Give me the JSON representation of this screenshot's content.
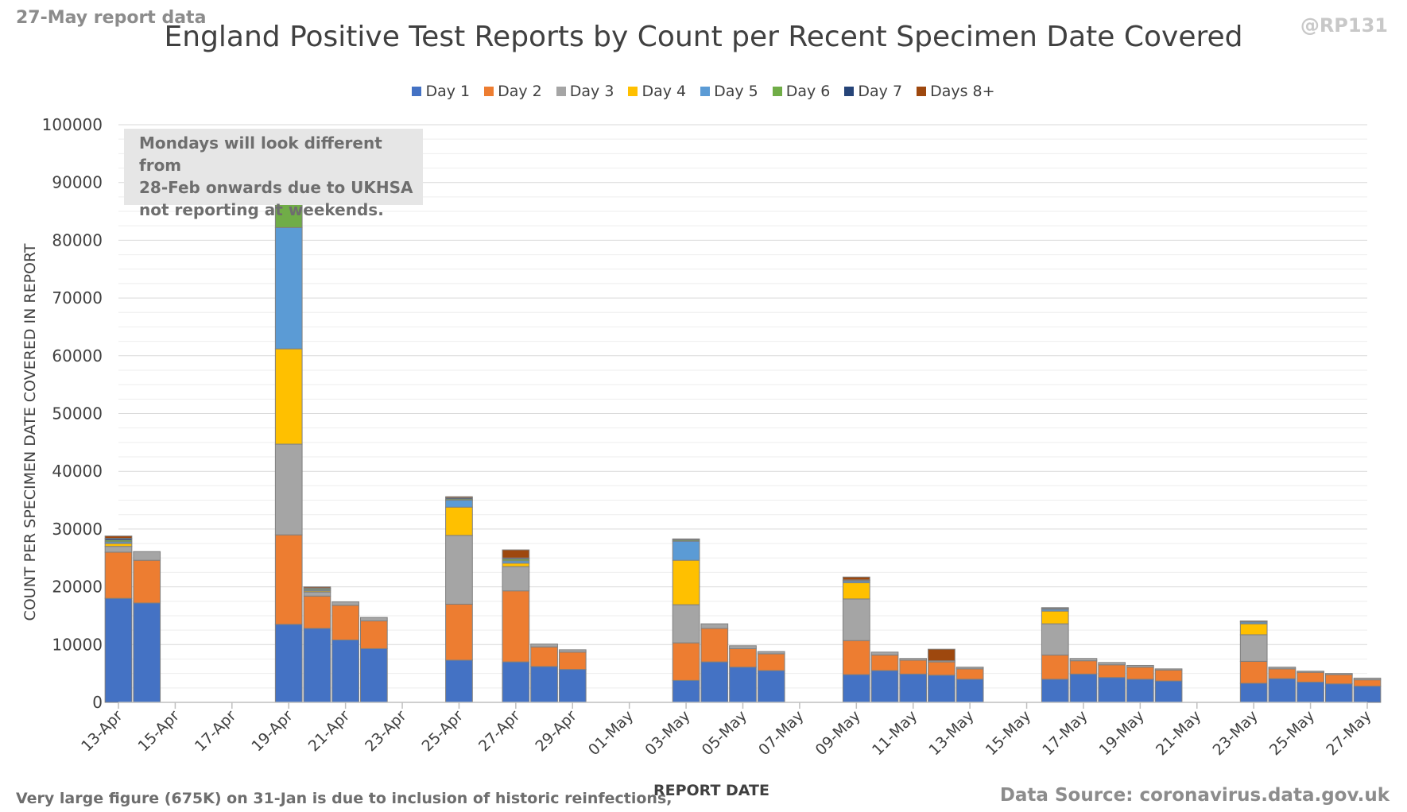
{
  "header": {
    "corner_left": "27-May report data",
    "corner_right": "@RP131"
  },
  "note": {
    "line1": "Mondays will look different from",
    "line2": "28-Feb onwards due to UKHSA",
    "line3": "not reporting at weekends."
  },
  "footer": {
    "left": "Very large figure (675K) on 31-Jan is due to inclusion of historic reinfections,",
    "right": "Data Source: coronavirus.data.gov.uk"
  },
  "chart_data": {
    "type": "bar",
    "stacked": true,
    "title": "England Positive Test Reports by Count per Recent Specimen Date Covered",
    "xlabel": "REPORT DATE",
    "ylabel": "COUNT PER SPECIMEN DATE COVERED IN REPORT",
    "ylim": [
      0,
      100000
    ],
    "yticks": [
      0,
      10000,
      20000,
      30000,
      40000,
      50000,
      60000,
      70000,
      80000,
      90000,
      100000
    ],
    "grid": true,
    "legend_position": "top",
    "categories": [
      "13-Apr",
      "14-Apr",
      "15-Apr",
      "16-Apr",
      "17-Apr",
      "18-Apr",
      "19-Apr",
      "20-Apr",
      "21-Apr",
      "22-Apr",
      "23-Apr",
      "24-Apr",
      "25-Apr",
      "26-Apr",
      "27-Apr",
      "28-Apr",
      "29-Apr",
      "30-Apr",
      "01-May",
      "02-May",
      "03-May",
      "04-May",
      "05-May",
      "06-May",
      "07-May",
      "08-May",
      "09-May",
      "10-May",
      "11-May",
      "12-May",
      "13-May",
      "14-May",
      "15-May",
      "16-May",
      "17-May",
      "18-May",
      "19-May",
      "20-May",
      "21-May",
      "22-May",
      "23-May",
      "24-May",
      "25-May",
      "26-May",
      "27-May"
    ],
    "xtick_labels": [
      "13-Apr",
      "15-Apr",
      "17-Apr",
      "19-Apr",
      "21-Apr",
      "23-Apr",
      "25-Apr",
      "27-Apr",
      "29-Apr",
      "01-May",
      "03-May",
      "05-May",
      "07-May",
      "09-May",
      "11-May",
      "13-May",
      "15-May",
      "17-May",
      "19-May",
      "21-May",
      "23-May",
      "25-May",
      "27-May"
    ],
    "series": [
      {
        "name": "Day 1",
        "color": "#4472c4",
        "values": [
          18000,
          17200,
          0,
          0,
          0,
          0,
          13500,
          12800,
          10800,
          9300,
          0,
          0,
          7300,
          0,
          7000,
          6200,
          5700,
          0,
          0,
          0,
          3800,
          7000,
          6100,
          5500,
          0,
          0,
          4800,
          5500,
          4900,
          4700,
          4000,
          0,
          0,
          4000,
          4900,
          4300,
          4000,
          3700,
          0,
          0,
          3300,
          4100,
          3500,
          3200,
          2800
        ]
      },
      {
        "name": "Day 2",
        "color": "#ed7d31",
        "values": [
          8000,
          7400,
          0,
          0,
          0,
          0,
          15500,
          5600,
          6000,
          4800,
          0,
          0,
          9700,
          0,
          12300,
          3400,
          3000,
          0,
          0,
          0,
          6500,
          5800,
          3200,
          2900,
          0,
          0,
          5900,
          2700,
          2400,
          2300,
          1800,
          0,
          0,
          4200,
          2300,
          2200,
          2100,
          1900,
          0,
          0,
          3800,
          1700,
          1700,
          1600,
          1100
        ]
      },
      {
        "name": "Day 3",
        "color": "#a5a5a5",
        "values": [
          1000,
          1500,
          0,
          0,
          0,
          0,
          15700,
          700,
          600,
          600,
          0,
          0,
          11900,
          0,
          4200,
          500,
          400,
          0,
          0,
          0,
          6600,
          800,
          500,
          400,
          0,
          0,
          7200,
          500,
          300,
          200,
          300,
          0,
          0,
          5400,
          400,
          400,
          300,
          200,
          0,
          0,
          4600,
          300,
          200,
          200,
          300
        ]
      },
      {
        "name": "Day 4",
        "color": "#ffc000",
        "values": [
          500,
          0,
          0,
          0,
          0,
          0,
          16500,
          200,
          0,
          0,
          0,
          0,
          4900,
          0,
          600,
          0,
          0,
          0,
          0,
          0,
          7700,
          0,
          0,
          0,
          0,
          0,
          2800,
          0,
          0,
          0,
          0,
          0,
          0,
          2200,
          0,
          0,
          0,
          0,
          0,
          0,
          1900,
          0,
          0,
          0,
          0
        ]
      },
      {
        "name": "Day 5",
        "color": "#5b9bd5",
        "values": [
          300,
          0,
          0,
          0,
          0,
          0,
          21000,
          200,
          0,
          0,
          0,
          0,
          1200,
          0,
          400,
          0,
          0,
          0,
          0,
          0,
          3300,
          0,
          0,
          0,
          0,
          0,
          300,
          0,
          0,
          0,
          0,
          0,
          0,
          300,
          0,
          0,
          0,
          0,
          0,
          0,
          300,
          0,
          0,
          0,
          0
        ]
      },
      {
        "name": "Day 6",
        "color": "#70ad47",
        "values": [
          300,
          0,
          0,
          0,
          0,
          0,
          7500,
          200,
          0,
          0,
          0,
          0,
          200,
          0,
          300,
          0,
          0,
          0,
          0,
          0,
          200,
          0,
          0,
          0,
          0,
          0,
          100,
          0,
          0,
          0,
          0,
          0,
          0,
          100,
          0,
          0,
          0,
          0,
          0,
          0,
          100,
          0,
          0,
          0,
          0
        ]
      },
      {
        "name": "Day 7",
        "color": "#264478",
        "values": [
          300,
          0,
          0,
          0,
          0,
          0,
          1900,
          100,
          0,
          0,
          0,
          0,
          200,
          0,
          200,
          0,
          0,
          0,
          0,
          0,
          100,
          0,
          0,
          0,
          0,
          0,
          100,
          0,
          0,
          0,
          0,
          0,
          0,
          100,
          0,
          0,
          0,
          0,
          0,
          0,
          100,
          0,
          0,
          0,
          0
        ]
      },
      {
        "name": "Days 8+",
        "color": "#9e480e",
        "values": [
          400,
          0,
          0,
          0,
          0,
          0,
          900,
          200,
          0,
          0,
          0,
          0,
          200,
          0,
          1400,
          0,
          0,
          0,
          0,
          0,
          100,
          0,
          0,
          0,
          0,
          0,
          500,
          0,
          0,
          2000,
          0,
          0,
          0,
          100,
          0,
          0,
          0,
          0,
          0,
          0,
          0,
          0,
          0,
          0,
          0
        ]
      }
    ]
  }
}
